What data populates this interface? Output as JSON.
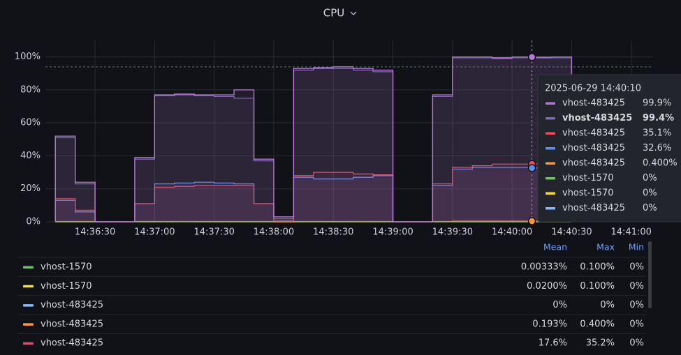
{
  "chart_data": {
    "type": "line",
    "title": "CPU",
    "step": true,
    "grid": true,
    "x": [
      "14:36:10",
      "14:36:20",
      "14:36:30",
      "14:36:40",
      "14:36:50",
      "14:37:00",
      "14:37:10",
      "14:37:20",
      "14:37:30",
      "14:37:40",
      "14:37:50",
      "14:38:00",
      "14:38:10",
      "14:38:20",
      "14:38:30",
      "14:38:40",
      "14:38:50",
      "14:39:00",
      "14:39:10",
      "14:39:20",
      "14:39:30",
      "14:39:40",
      "14:39:50",
      "14:40:00",
      "14:40:10",
      "14:40:20"
    ],
    "xlim": [
      "14:36:05",
      "14:41:11"
    ],
    "xticks": [
      "14:36:30",
      "14:37:00",
      "14:37:30",
      "14:38:00",
      "14:38:30",
      "14:39:00",
      "14:39:30",
      "14:40:00",
      "14:40:30",
      "14:41:00"
    ],
    "ylim": [
      0,
      110
    ],
    "yticks": [
      {
        "value": 0,
        "label": "0%"
      },
      {
        "value": 20,
        "label": "20%"
      },
      {
        "value": 40,
        "label": "40%"
      },
      {
        "value": 60,
        "label": "60%"
      },
      {
        "value": 80,
        "label": "80%"
      },
      {
        "value": 100,
        "label": "100%"
      }
    ],
    "threshold": 94,
    "hover_x": "14:40:10",
    "series": [
      {
        "name": "vhost-483425",
        "color": "#b877d9",
        "values": [
          52,
          24,
          0,
          0,
          39,
          77,
          77.5,
          77,
          77,
          80,
          38,
          3,
          93,
          93.5,
          94,
          93,
          92,
          0,
          0,
          77,
          100,
          100,
          99.5,
          100,
          99.9,
          100
        ]
      },
      {
        "name": "vhost-483425",
        "color": "#7b6aa8",
        "values": [
          51,
          23,
          0,
          0,
          38,
          76.5,
          77,
          76.5,
          76,
          75,
          37,
          2,
          92,
          93,
          93,
          92,
          91,
          0,
          0,
          76,
          99.5,
          99.5,
          99,
          99.5,
          99.4,
          99.5
        ]
      },
      {
        "name": "vhost-483425",
        "color": "#f2495c",
        "values": [
          14,
          7,
          0,
          0,
          11,
          21,
          21.5,
          22,
          22,
          22,
          11,
          1,
          28,
          30,
          30,
          29,
          28.5,
          0,
          0,
          23,
          33,
          34,
          35,
          35,
          35.1,
          35
        ]
      },
      {
        "name": "vhost-483425",
        "color": "#5794f2",
        "values": [
          13,
          6,
          0,
          0,
          11,
          23,
          23.5,
          24,
          23.5,
          23,
          11,
          1,
          27,
          26,
          26,
          27,
          28,
          0,
          0,
          22,
          32,
          33,
          33,
          33,
          32.6,
          33
        ]
      },
      {
        "name": "vhost-483425",
        "color": "#ff9830",
        "values": [
          0.2,
          0.2,
          0,
          0,
          0.2,
          0.2,
          0.2,
          0.2,
          0.2,
          0.2,
          0.2,
          0,
          0.2,
          0.2,
          0.2,
          0.2,
          0.2,
          0,
          0,
          0.2,
          0.4,
          0.4,
          0.4,
          0.4,
          0.4,
          0.4
        ]
      },
      {
        "name": "vhost-1570",
        "color": "#73bf69",
        "values": [
          0,
          0,
          0,
          0,
          0,
          0,
          0,
          0,
          0,
          0,
          0,
          0,
          0,
          0,
          0,
          0.1,
          0,
          0,
          0,
          0,
          0,
          0,
          0,
          0,
          0,
          0
        ]
      },
      {
        "name": "vhost-1570",
        "color": "#fade2a",
        "values": [
          0,
          0,
          0,
          0,
          0,
          0,
          0.1,
          0,
          0,
          0,
          0,
          0,
          0,
          0,
          0,
          0,
          0,
          0,
          0,
          0,
          0,
          0,
          0,
          0,
          0,
          0
        ]
      },
      {
        "name": "vhost-483425",
        "color": "#8ab8ff",
        "values": [
          0,
          0,
          0,
          0,
          0,
          0,
          0,
          0,
          0,
          0,
          0,
          0,
          0,
          0,
          0,
          0,
          0,
          0,
          0,
          0,
          0,
          0,
          0,
          0,
          0,
          0
        ]
      }
    ]
  },
  "tooltip": {
    "time": "2025-06-29 14:40:10",
    "emphasized": 1,
    "rows": [
      {
        "name": "vhost-483425",
        "color": "#b877d9",
        "value": "99.9%"
      },
      {
        "name": "vhost-483425",
        "color": "#7b6aa8",
        "value": "99.4%"
      },
      {
        "name": "vhost-483425",
        "color": "#f2495c",
        "value": "35.1%"
      },
      {
        "name": "vhost-483425",
        "color": "#5794f2",
        "value": "32.6%"
      },
      {
        "name": "vhost-483425",
        "color": "#ff9830",
        "value": "0.400%"
      },
      {
        "name": "vhost-1570",
        "color": "#73bf69",
        "value": "0%"
      },
      {
        "name": "vhost-1570",
        "color": "#fade2a",
        "value": "0%"
      },
      {
        "name": "vhost-483425",
        "color": "#8ab8ff",
        "value": "0%"
      }
    ]
  },
  "legend_table": {
    "columns": [
      "Mean",
      "Max",
      "Min"
    ],
    "rows": [
      {
        "name": "vhost-1570",
        "color": "#73bf69",
        "cells": [
          "0.00333%",
          "0.100%",
          "0%"
        ]
      },
      {
        "name": "vhost-1570",
        "color": "#fade2a",
        "cells": [
          "0.0200%",
          "0.100%",
          "0%"
        ]
      },
      {
        "name": "vhost-483425",
        "color": "#8ab8ff",
        "cells": [
          "0%",
          "0%",
          "0%"
        ]
      },
      {
        "name": "vhost-483425",
        "color": "#ff9830",
        "cells": [
          "0.193%",
          "0.400%",
          "0%"
        ]
      },
      {
        "name": "vhost-483425",
        "color": "#f2495c",
        "cells": [
          "17.6%",
          "35.2%",
          "0%"
        ]
      }
    ]
  }
}
